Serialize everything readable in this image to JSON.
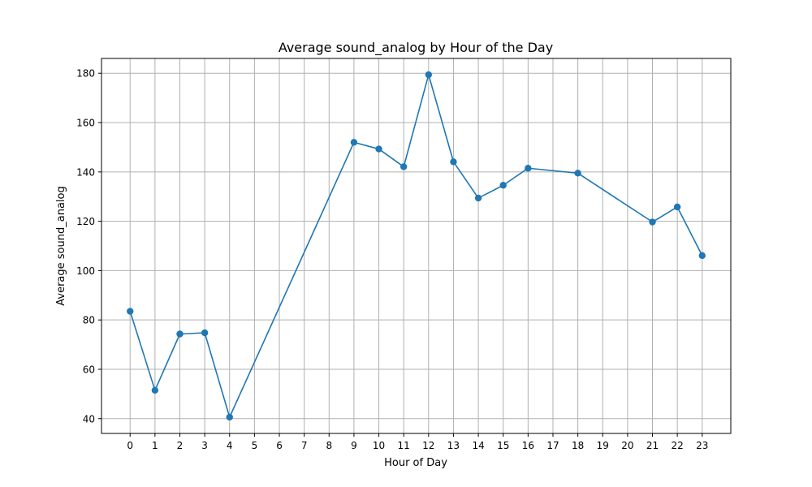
{
  "chart_data": {
    "type": "line",
    "title": "Average sound_analog by Hour of the Day",
    "xlabel": "Hour of Day",
    "ylabel": "Average sound_analog",
    "x_ticks": [
      0,
      1,
      2,
      3,
      4,
      5,
      6,
      7,
      8,
      9,
      10,
      11,
      12,
      13,
      14,
      15,
      16,
      17,
      18,
      19,
      20,
      21,
      22,
      23
    ],
    "y_ticks": [
      40,
      60,
      80,
      100,
      120,
      140,
      160,
      180
    ],
    "xlim": [
      -1.15,
      24.15
    ],
    "ylim": [
      34,
      186
    ],
    "grid": true,
    "series": [
      {
        "x": [
          0,
          1,
          2,
          3,
          4,
          9,
          10,
          11,
          12,
          13,
          14,
          15,
          16,
          18,
          21,
          22,
          23
        ],
        "y": [
          83.5,
          51.5,
          74.3,
          74.8,
          40.6,
          152.0,
          149.3,
          142.1,
          179.4,
          144.1,
          129.4,
          134.6,
          141.5,
          139.5,
          119.7,
          125.8,
          106.1
        ],
        "color": "#1f77b4"
      }
    ]
  }
}
